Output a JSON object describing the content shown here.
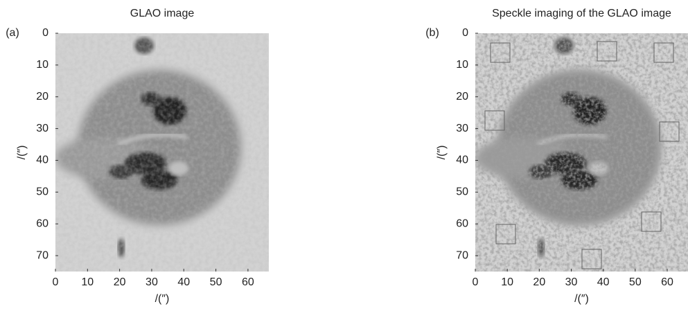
{
  "chart_data": [
    {
      "type": "image",
      "panel_label": "(a)",
      "title": "GLAO image",
      "xlabel": "/(″)",
      "ylabel": "/(″)",
      "xlim": [
        0,
        66.5
      ],
      "ylim": [
        0,
        75
      ],
      "xticks": [
        0,
        10,
        20,
        30,
        40,
        50,
        60
      ],
      "yticks": [
        0,
        10,
        20,
        30,
        40,
        50,
        60,
        70
      ],
      "sharpened": false
    },
    {
      "type": "image",
      "panel_label": "(b)",
      "title": "Speckle imaging of the GLAO image",
      "xlabel": "/(″)",
      "ylabel": "/(″)",
      "xlim": [
        0,
        66.5
      ],
      "ylim": [
        0,
        75
      ],
      "xticks": [
        0,
        10,
        20,
        30,
        40,
        50,
        60
      ],
      "yticks": [
        0,
        10,
        20,
        30,
        40,
        50,
        60,
        70
      ],
      "sharpened": true
    }
  ]
}
